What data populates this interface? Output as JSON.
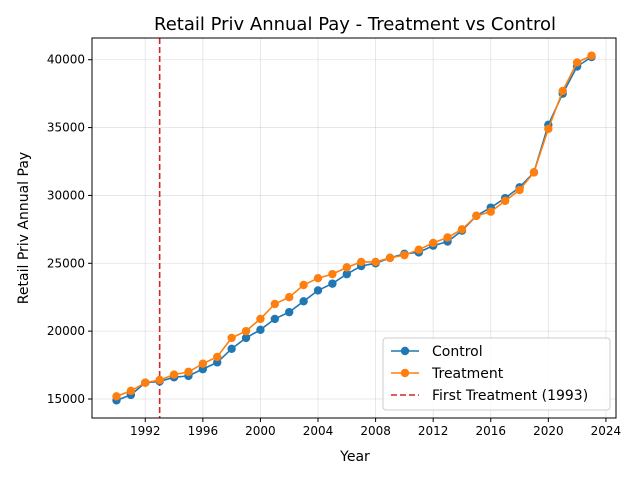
{
  "chart_data": {
    "type": "line",
    "title": "Retail Priv Annual Pay - Treatment vs Control",
    "xlabel": "Year",
    "ylabel": "Retail Priv Annual Pay",
    "xlim": [
      1988.3,
      2024.7
    ],
    "ylim": [
      13600,
      41600
    ],
    "xticks": [
      1992,
      1996,
      2000,
      2004,
      2008,
      2012,
      2016,
      2020,
      2024
    ],
    "yticks": [
      15000,
      20000,
      25000,
      30000,
      35000,
      40000
    ],
    "grid": true,
    "legend_position": "lower-right",
    "x": [
      1990,
      1991,
      1992,
      1993,
      1994,
      1995,
      1996,
      1997,
      1998,
      1999,
      2000,
      2001,
      2002,
      2003,
      2004,
      2005,
      2006,
      2007,
      2008,
      2009,
      2010,
      2011,
      2012,
      2013,
      2014,
      2015,
      2016,
      2017,
      2018,
      2019,
      2020,
      2021,
      2022,
      2023
    ],
    "series": [
      {
        "name": "Control",
        "color": "#1f77b4",
        "values": [
          14900,
          15300,
          16200,
          16300,
          16600,
          16700,
          17200,
          17700,
          18700,
          19500,
          20100,
          20900,
          21400,
          22200,
          23000,
          23500,
          24200,
          24800,
          25000,
          25400,
          25700,
          25800,
          26300,
          26600,
          27400,
          28500,
          29100,
          29800,
          30600,
          31700,
          35200,
          37500,
          39500,
          40200
        ]
      },
      {
        "name": "Treatment",
        "color": "#ff7f0e",
        "values": [
          15200,
          15600,
          16200,
          16400,
          16800,
          17000,
          17600,
          18100,
          19500,
          20000,
          20900,
          22000,
          22500,
          23400,
          23900,
          24200,
          24700,
          25100,
          25100,
          25400,
          25600,
          26000,
          26500,
          26900,
          27500,
          28500,
          28800,
          29600,
          30400,
          31700,
          34900,
          37700,
          39800,
          40300
        ]
      }
    ],
    "reference_line": {
      "label": "First Treatment (1993)",
      "x": 1993,
      "color": "#d62728"
    }
  }
}
